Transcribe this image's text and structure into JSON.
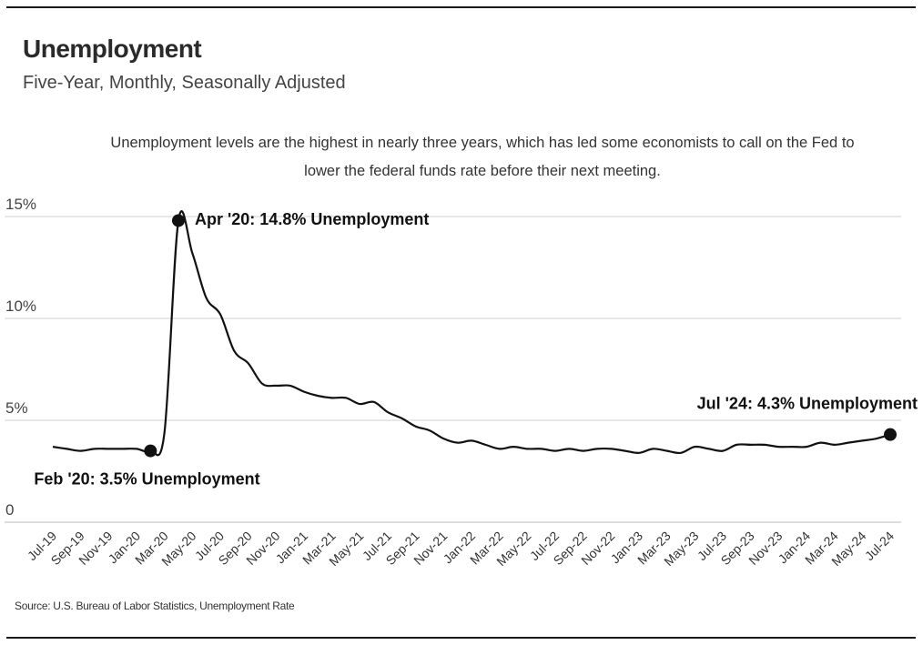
{
  "title": "Unemployment",
  "subtitle": "Five-Year, Monthly, Seasonally Adjusted",
  "annotation": "Unemployment levels are the highest in nearly three years, which has led some economists to call on the Fed to lower the federal funds rate before their next meeting.",
  "source": "Source:  U.S. Bureau of Labor Statistics, Unemployment Rate",
  "colors": {
    "line": "#111111",
    "grid": "#d0d0d0",
    "text": "#333333"
  },
  "chart_data": {
    "type": "line",
    "title": "Unemployment",
    "subtitle": "Five-Year, Monthly, Seasonally Adjusted",
    "ylim": [
      0,
      15
    ],
    "yticks": [
      0,
      5,
      10,
      15
    ],
    "ytick_labels": [
      "0",
      "5%",
      "10%",
      "15%"
    ],
    "grid": true,
    "legend": "none",
    "x": [
      "Jul-19",
      "Aug-19",
      "Sep-19",
      "Oct-19",
      "Nov-19",
      "Dec-19",
      "Jan-20",
      "Feb-20",
      "Mar-20",
      "Apr-20",
      "May-20",
      "Jun-20",
      "Jul-20",
      "Aug-20",
      "Sep-20",
      "Oct-20",
      "Nov-20",
      "Dec-20",
      "Jan-21",
      "Feb-21",
      "Mar-21",
      "Apr-21",
      "May-21",
      "Jun-21",
      "Jul-21",
      "Aug-21",
      "Sep-21",
      "Oct-21",
      "Nov-21",
      "Dec-21",
      "Jan-22",
      "Feb-22",
      "Mar-22",
      "Apr-22",
      "May-22",
      "Jun-22",
      "Jul-22",
      "Aug-22",
      "Sep-22",
      "Oct-22",
      "Nov-22",
      "Dec-22",
      "Jan-23",
      "Feb-23",
      "Mar-23",
      "Apr-23",
      "May-23",
      "Jun-23",
      "Jul-23",
      "Aug-23",
      "Sep-23",
      "Oct-23",
      "Nov-23",
      "Dec-23",
      "Jan-24",
      "Feb-24",
      "Mar-24",
      "Apr-24",
      "May-24",
      "Jun-24",
      "Jul-24"
    ],
    "xtick_labels": [
      "Jul-19",
      "Sep-19",
      "Nov-19",
      "Jan-20",
      "Mar-20",
      "May-20",
      "Jul-20",
      "Sep-20",
      "Nov-20",
      "Jan-21",
      "Mar-21",
      "May-21",
      "Jul-21",
      "Sep-21",
      "Nov-21",
      "Jan-22",
      "Mar-22",
      "May-22",
      "Jul-22",
      "Sep-22",
      "Nov-22",
      "Jan-23",
      "Mar-23",
      "May-23",
      "Jul-23",
      "Sep-23",
      "Nov-23",
      "Jan-24",
      "Mar-24",
      "May-24",
      "Jul-24"
    ],
    "series": [
      {
        "values": [
          3.7,
          3.6,
          3.5,
          3.6,
          3.6,
          3.6,
          3.6,
          3.5,
          4.4,
          14.8,
          13.2,
          11.0,
          10.2,
          8.4,
          7.8,
          6.8,
          6.7,
          6.7,
          6.4,
          6.2,
          6.1,
          6.1,
          5.8,
          5.9,
          5.4,
          5.1,
          4.7,
          4.5,
          4.1,
          3.9,
          4.0,
          3.8,
          3.6,
          3.7,
          3.6,
          3.6,
          3.5,
          3.6,
          3.5,
          3.6,
          3.6,
          3.5,
          3.4,
          3.6,
          3.5,
          3.4,
          3.7,
          3.6,
          3.5,
          3.8,
          3.8,
          3.8,
          3.7,
          3.7,
          3.7,
          3.9,
          3.8,
          3.9,
          4.0,
          4.1,
          4.3
        ]
      }
    ],
    "highlights": [
      {
        "index": 7,
        "label": "Feb '20: 3.5% Unemployment"
      },
      {
        "index": 9,
        "label": "Apr '20: 14.8% Unemployment"
      },
      {
        "index": 60,
        "label": "Jul '24: 4.3% Unemployment"
      }
    ]
  }
}
